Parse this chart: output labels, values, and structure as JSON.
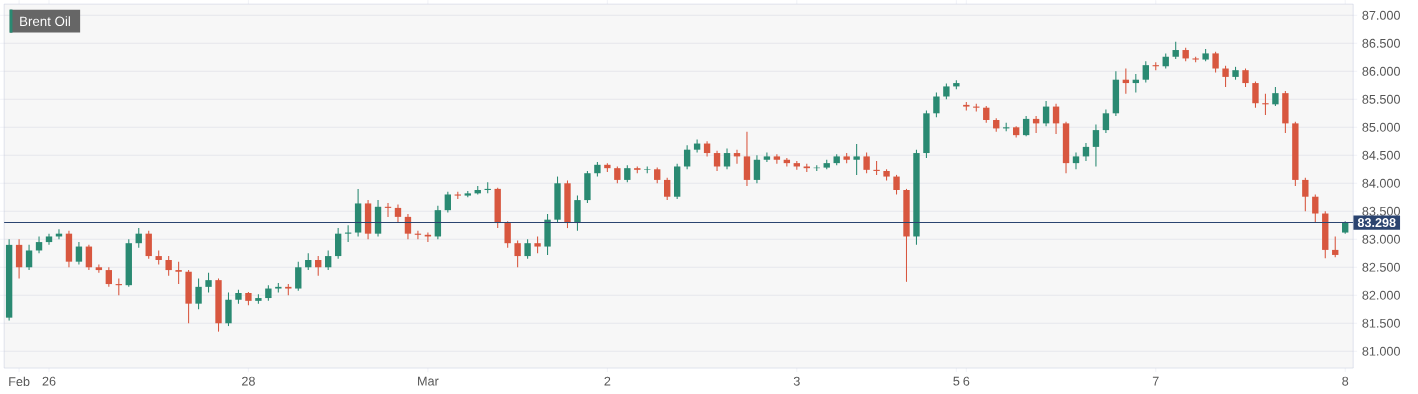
{
  "chart_data": {
    "type": "candlestick",
    "title": "Brent Oil",
    "categories": [
      null,
      "Feb",
      null,
      null,
      "26",
      null,
      null,
      null,
      null,
      null,
      null,
      null,
      null,
      null,
      null,
      null,
      null,
      null,
      null,
      null,
      null,
      null,
      null,
      null,
      "28",
      null,
      null,
      null,
      null,
      null,
      null,
      null,
      null,
      null,
      null,
      null,
      null,
      null,
      null,
      null,
      null,
      null,
      "Mar",
      null,
      null,
      null,
      null,
      null,
      null,
      null,
      null,
      null,
      null,
      null,
      null,
      null,
      null,
      null,
      null,
      null,
      "2",
      null,
      null,
      null,
      null,
      null,
      null,
      null,
      null,
      null,
      null,
      null,
      null,
      null,
      null,
      null,
      null,
      null,
      null,
      "3",
      null,
      null,
      null,
      null,
      null,
      null,
      null,
      null,
      null,
      null,
      null,
      null,
      null,
      null,
      null,
      "5",
      "6",
      null,
      null,
      null,
      null,
      null,
      null,
      null,
      null,
      null,
      null,
      null,
      null,
      null,
      null,
      null,
      null,
      null,
      null,
      "7",
      null,
      null,
      null,
      null,
      null,
      null,
      null,
      null,
      null,
      null,
      null,
      null,
      null,
      null,
      null,
      null,
      null,
      null,
      "8"
    ],
    "ohlc": [
      [
        81.6,
        83.0,
        81.55,
        82.9
      ],
      [
        82.9,
        83.0,
        82.3,
        82.5
      ],
      [
        82.5,
        82.9,
        82.45,
        82.8
      ],
      [
        82.8,
        83.05,
        82.75,
        82.95
      ],
      [
        82.95,
        83.1,
        82.9,
        83.05
      ],
      [
        83.05,
        83.18,
        83.0,
        83.1
      ],
      [
        83.1,
        83.15,
        82.5,
        82.6
      ],
      [
        82.6,
        82.95,
        82.55,
        82.87
      ],
      [
        82.87,
        82.9,
        82.45,
        82.5
      ],
      [
        82.5,
        82.55,
        82.4,
        82.45
      ],
      [
        82.45,
        82.5,
        82.15,
        82.2
      ],
      [
        82.2,
        82.3,
        82.0,
        82.18
      ],
      [
        82.18,
        83.0,
        82.15,
        82.93
      ],
      [
        82.93,
        83.2,
        82.85,
        83.1
      ],
      [
        83.1,
        83.15,
        82.65,
        82.7
      ],
      [
        82.7,
        82.8,
        82.55,
        82.63
      ],
      [
        82.63,
        82.7,
        82.35,
        82.45
      ],
      [
        82.45,
        82.6,
        82.2,
        82.42
      ],
      [
        82.42,
        82.45,
        81.5,
        81.85
      ],
      [
        81.85,
        82.3,
        81.75,
        82.15
      ],
      [
        82.15,
        82.4,
        82.05,
        82.27
      ],
      [
        82.27,
        82.3,
        81.35,
        81.5
      ],
      [
        81.5,
        82.05,
        81.45,
        81.92
      ],
      [
        81.92,
        82.1,
        81.85,
        82.04
      ],
      [
        82.04,
        82.06,
        81.82,
        81.9
      ],
      [
        81.9,
        82.02,
        81.85,
        81.95
      ],
      [
        81.95,
        82.18,
        81.9,
        82.12
      ],
      [
        82.12,
        82.22,
        82.05,
        82.15
      ],
      [
        82.15,
        82.2,
        82.0,
        82.12
      ],
      [
        82.12,
        82.6,
        82.08,
        82.5
      ],
      [
        82.5,
        82.75,
        82.45,
        82.63
      ],
      [
        82.63,
        82.7,
        82.35,
        82.5
      ],
      [
        82.5,
        82.8,
        82.45,
        82.7
      ],
      [
        82.7,
        83.2,
        82.65,
        83.1
      ],
      [
        83.1,
        83.25,
        82.95,
        83.12
      ],
      [
        83.12,
        83.9,
        83.05,
        83.64
      ],
      [
        83.64,
        83.7,
        83.0,
        83.1
      ],
      [
        83.1,
        83.7,
        83.05,
        83.58
      ],
      [
        83.58,
        83.65,
        83.4,
        83.56
      ],
      [
        83.56,
        83.62,
        83.3,
        83.4
      ],
      [
        83.4,
        83.45,
        83.0,
        83.1
      ],
      [
        83.1,
        83.15,
        83.0,
        83.08
      ],
      [
        83.08,
        83.12,
        82.95,
        83.05
      ],
      [
        83.05,
        83.6,
        83.0,
        83.52
      ],
      [
        83.52,
        83.85,
        83.48,
        83.8
      ],
      [
        83.8,
        83.85,
        83.72,
        83.78
      ],
      [
        83.78,
        83.86,
        83.75,
        83.82
      ],
      [
        83.82,
        83.95,
        83.8,
        83.88
      ],
      [
        83.88,
        84.02,
        83.82,
        83.9
      ],
      [
        83.9,
        83.92,
        83.2,
        83.29
      ],
      [
        83.29,
        83.32,
        82.85,
        82.93
      ],
      [
        82.93,
        82.98,
        82.5,
        82.7
      ],
      [
        82.7,
        83.0,
        82.65,
        82.93
      ],
      [
        82.93,
        83.05,
        82.75,
        82.87
      ],
      [
        82.87,
        83.45,
        82.72,
        83.35
      ],
      [
        83.35,
        84.12,
        83.3,
        84.0
      ],
      [
        84.0,
        84.05,
        83.2,
        83.29
      ],
      [
        83.29,
        83.78,
        83.15,
        83.7
      ],
      [
        83.7,
        84.22,
        83.65,
        84.18
      ],
      [
        84.18,
        84.38,
        84.12,
        84.33
      ],
      [
        84.33,
        84.36,
        84.2,
        84.27
      ],
      [
        84.27,
        84.3,
        84.0,
        84.06
      ],
      [
        84.06,
        84.32,
        84.02,
        84.27
      ],
      [
        84.27,
        84.3,
        84.18,
        84.24
      ],
      [
        84.24,
        84.3,
        84.18,
        84.25
      ],
      [
        84.25,
        84.28,
        84.0,
        84.06
      ],
      [
        84.06,
        84.1,
        83.7,
        83.76
      ],
      [
        83.76,
        84.35,
        83.72,
        84.3
      ],
      [
        84.3,
        84.68,
        84.25,
        84.6
      ],
      [
        84.6,
        84.78,
        84.55,
        84.71
      ],
      [
        84.71,
        84.75,
        84.48,
        84.54
      ],
      [
        84.54,
        84.58,
        84.22,
        84.3
      ],
      [
        84.3,
        84.62,
        84.25,
        84.54
      ],
      [
        84.54,
        84.6,
        84.35,
        84.48
      ],
      [
        84.48,
        84.92,
        83.95,
        84.06
      ],
      [
        84.06,
        84.5,
        84.0,
        84.42
      ],
      [
        84.42,
        84.55,
        84.38,
        84.48
      ],
      [
        84.48,
        84.52,
        84.35,
        84.42
      ],
      [
        84.42,
        84.45,
        84.3,
        84.36
      ],
      [
        84.36,
        84.4,
        84.24,
        84.3
      ],
      [
        84.3,
        84.35,
        84.2,
        84.27
      ],
      [
        84.27,
        84.32,
        84.22,
        84.28
      ],
      [
        84.28,
        84.42,
        84.25,
        84.36
      ],
      [
        84.36,
        84.52,
        84.32,
        84.48
      ],
      [
        84.48,
        84.54,
        84.36,
        84.42
      ],
      [
        84.42,
        84.7,
        84.15,
        84.48
      ],
      [
        84.48,
        84.55,
        84.18,
        84.24
      ],
      [
        84.24,
        84.4,
        84.15,
        84.22
      ],
      [
        84.22,
        84.25,
        84.05,
        84.12
      ],
      [
        84.12,
        84.15,
        83.8,
        83.88
      ],
      [
        83.88,
        83.9,
        82.24,
        83.05
      ],
      [
        83.05,
        84.6,
        82.9,
        84.54
      ],
      [
        84.54,
        85.3,
        84.45,
        85.25
      ],
      [
        85.25,
        85.62,
        85.18,
        85.55
      ],
      [
        85.55,
        85.78,
        85.5,
        85.73
      ],
      [
        85.73,
        85.84,
        85.68,
        85.79
      ],
      [
        85.4,
        85.45,
        85.3,
        85.37
      ],
      [
        85.37,
        85.42,
        85.28,
        85.35
      ],
      [
        85.35,
        85.38,
        85.08,
        85.13
      ],
      [
        85.13,
        85.16,
        84.92,
        84.98
      ],
      [
        84.98,
        85.08,
        84.93,
        85.0
      ],
      [
        85.0,
        85.02,
        84.82,
        84.86
      ],
      [
        84.86,
        85.2,
        84.84,
        85.15
      ],
      [
        85.15,
        85.2,
        84.9,
        85.07
      ],
      [
        85.07,
        85.47,
        85.02,
        85.37
      ],
      [
        85.37,
        85.42,
        84.88,
        85.07
      ],
      [
        85.07,
        85.1,
        84.18,
        84.36
      ],
      [
        84.36,
        84.55,
        84.25,
        84.48
      ],
      [
        84.48,
        84.72,
        84.4,
        84.65
      ],
      [
        84.65,
        85.05,
        84.3,
        84.95
      ],
      [
        84.95,
        85.32,
        84.9,
        85.25
      ],
      [
        85.25,
        86.0,
        85.2,
        85.85
      ],
      [
        85.85,
        86.05,
        85.6,
        85.79
      ],
      [
        85.79,
        85.95,
        85.62,
        85.85
      ],
      [
        85.85,
        86.18,
        85.8,
        86.11
      ],
      [
        86.11,
        86.16,
        86.02,
        86.09
      ],
      [
        86.09,
        86.32,
        86.05,
        86.26
      ],
      [
        86.26,
        86.53,
        86.22,
        86.38
      ],
      [
        86.38,
        86.42,
        86.18,
        86.23
      ],
      [
        86.23,
        86.26,
        86.16,
        86.21
      ],
      [
        86.21,
        86.4,
        86.18,
        86.32
      ],
      [
        86.32,
        86.35,
        85.98,
        86.05
      ],
      [
        86.05,
        86.1,
        85.72,
        85.9
      ],
      [
        85.9,
        86.08,
        85.85,
        86.02
      ],
      [
        86.02,
        86.05,
        85.72,
        85.79
      ],
      [
        85.79,
        85.82,
        85.35,
        85.43
      ],
      [
        85.43,
        85.6,
        85.22,
        85.41
      ],
      [
        85.41,
        85.72,
        85.38,
        85.61
      ],
      [
        85.61,
        85.65,
        84.9,
        85.07
      ],
      [
        85.07,
        85.1,
        83.95,
        84.06
      ],
      [
        84.06,
        84.1,
        83.5,
        83.76
      ],
      [
        83.76,
        83.8,
        83.3,
        83.46
      ],
      [
        83.46,
        83.5,
        82.66,
        82.81
      ],
      [
        82.81,
        83.05,
        82.68,
        82.72
      ],
      [
        83.12,
        83.32,
        83.1,
        83.3
      ]
    ],
    "ylim": [
      80.7,
      87.2
    ],
    "yticks": [
      {
        "value": 81,
        "label": "81.000"
      },
      {
        "value": 81.5,
        "label": "81.500"
      },
      {
        "value": 82,
        "label": "82.000"
      },
      {
        "value": 82.5,
        "label": "82.500"
      },
      {
        "value": 83,
        "label": "83.000"
      },
      {
        "value": 83.5,
        "label": "83.500"
      },
      {
        "value": 84,
        "label": "84.000"
      },
      {
        "value": 84.5,
        "label": "84.500"
      },
      {
        "value": 85,
        "label": "85.000"
      },
      {
        "value": 85.5,
        "label": "85.500"
      },
      {
        "value": 86,
        "label": "86.000"
      },
      {
        "value": 86.5,
        "label": "86.500"
      },
      {
        "value": 87,
        "label": "87.000"
      }
    ],
    "grid": "y",
    "ref_lines": [
      {
        "axis": "y",
        "value": 83.298,
        "label": "83.298",
        "color": "#2b4470"
      }
    ]
  }
}
